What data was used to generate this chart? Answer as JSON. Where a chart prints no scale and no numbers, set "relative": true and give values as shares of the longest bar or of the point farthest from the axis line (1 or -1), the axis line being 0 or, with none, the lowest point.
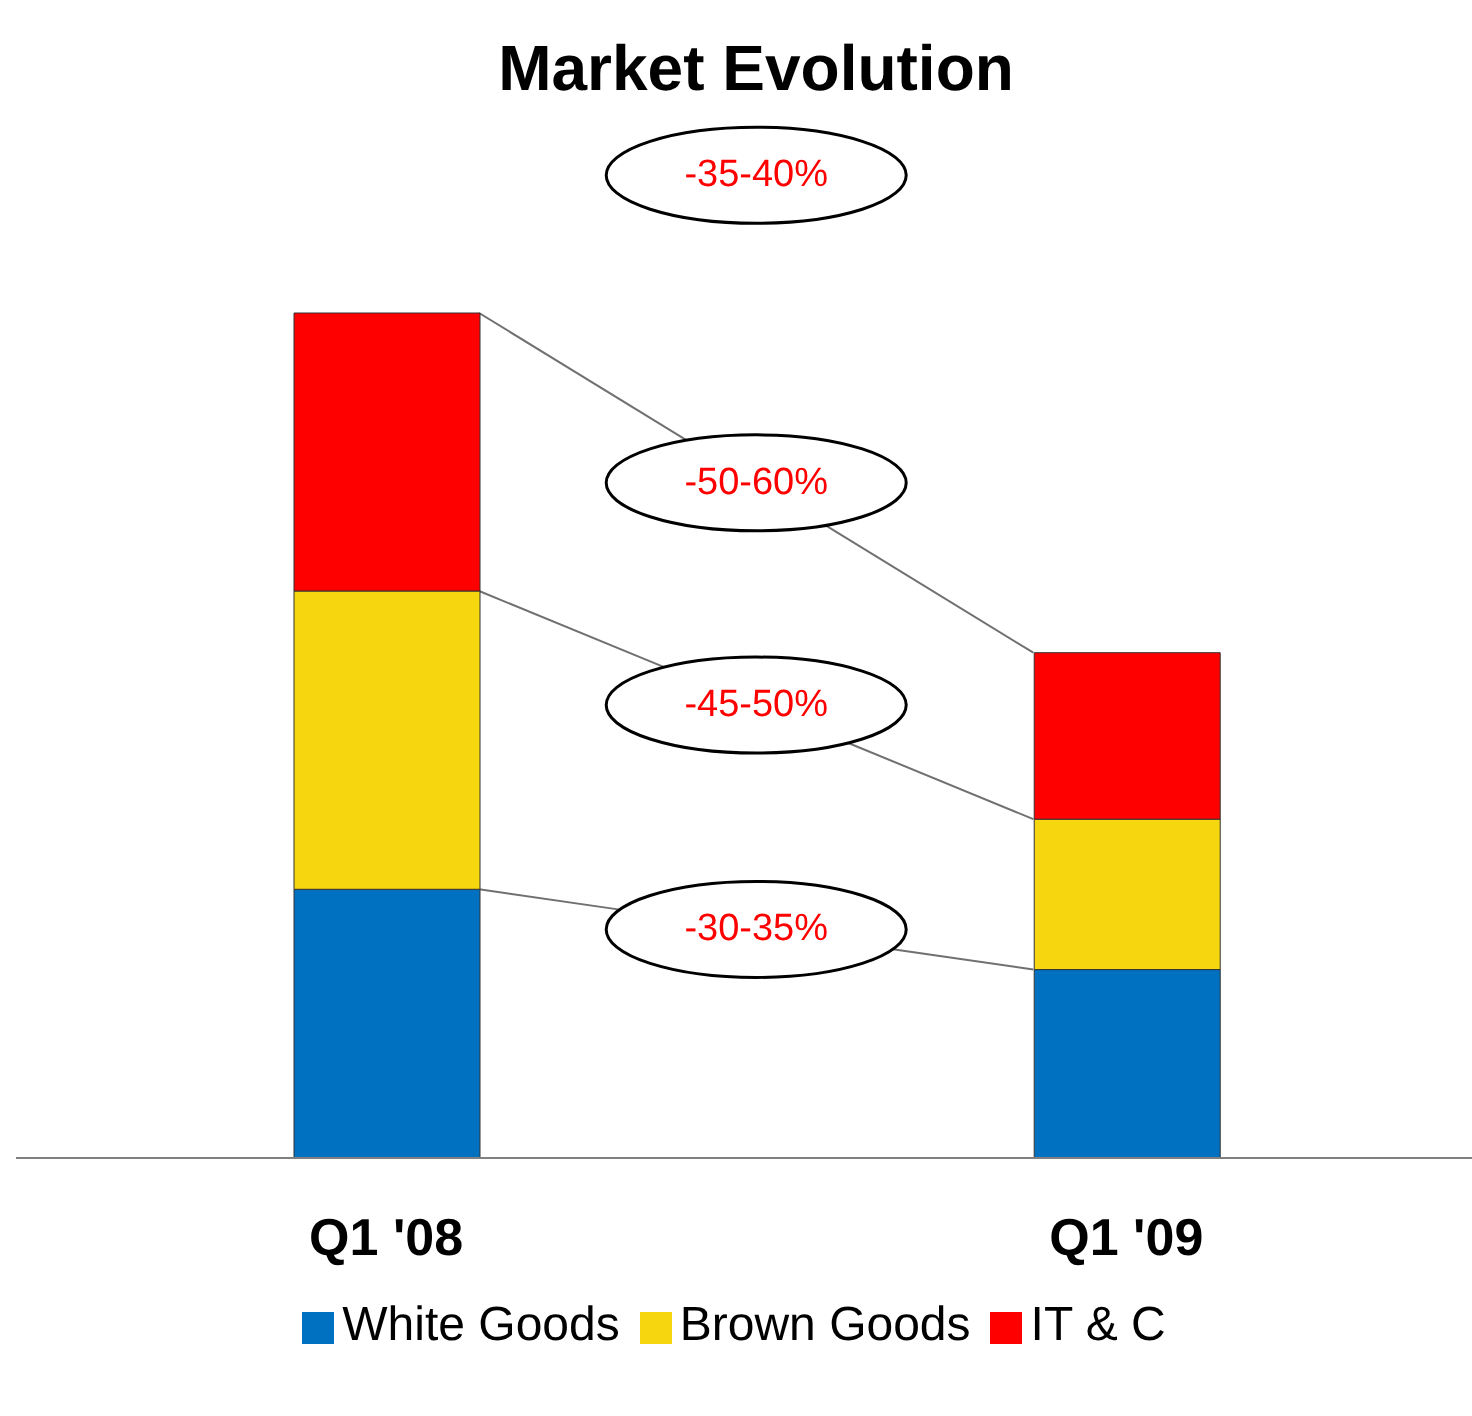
{
  "chart_data": {
    "type": "bar",
    "title": "Market Evolution",
    "categories": [
      "Q1 '08",
      "Q1 '09"
    ],
    "stacked": true,
    "relative": true,
    "legend": "bottom",
    "series": [
      {
        "name": "White Goods",
        "color": "#0070c0",
        "values": [
          0.318,
          0.223
        ]
      },
      {
        "name": "Brown Goods",
        "color": "#f5d60f",
        "values": [
          0.353,
          0.178
        ]
      },
      {
        "name": "IT & C",
        "color": "#ff0000",
        "values": [
          0.329,
          0.197
        ]
      }
    ],
    "annotations": [
      "-35-40%",
      "-50-60%",
      "-45-50%",
      "-30-35%"
    ]
  }
}
